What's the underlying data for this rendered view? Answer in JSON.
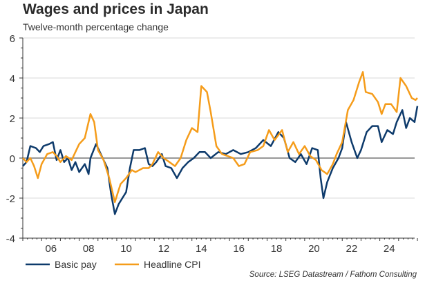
{
  "chart_data": {
    "type": "line",
    "title": "Wages and prices in Japan",
    "subtitle": "Twelve-month percentage change",
    "xlabel": "",
    "ylabel": "",
    "source": "Source: LSEG Datastream / Fathom Consulting",
    "xlim": [
      2005,
      2026
    ],
    "ylim": [
      -4,
      6
    ],
    "yticks": [
      -4,
      -2,
      0,
      2,
      4,
      6
    ],
    "ytick_labels": [
      "-4",
      "-2",
      "0",
      "2",
      "4",
      "6"
    ],
    "xtick_labels": [
      {
        "year": 2006,
        "label": "06"
      },
      {
        "year": 2008,
        "label": "08"
      },
      {
        "year": 2010,
        "label": "10"
      },
      {
        "year": 2012,
        "label": "12"
      },
      {
        "year": 2014,
        "label": "14"
      },
      {
        "year": 2016,
        "label": "16"
      },
      {
        "year": 2018,
        "label": "18"
      },
      {
        "year": 2020,
        "label": "20"
      },
      {
        "year": 2022,
        "label": "22"
      },
      {
        "year": 2024,
        "label": "24"
      }
    ],
    "grid": true,
    "legend": "bottom-left",
    "series": [
      {
        "name": "Basic pay",
        "color": "#0d3a6b",
        "x": [
          2005.0,
          2005.2,
          2005.4,
          2005.7,
          2005.9,
          2006.1,
          2006.4,
          2006.6,
          2006.8,
          2007.0,
          2007.2,
          2007.4,
          2007.6,
          2007.8,
          2008.0,
          2008.3,
          2008.5,
          2008.6,
          2008.9,
          2009.1,
          2009.3,
          2009.5,
          2009.7,
          2009.9,
          2010.1,
          2010.3,
          2010.5,
          2010.7,
          2010.9,
          2011.2,
          2011.5,
          2011.7,
          2011.9,
          2012.1,
          2012.4,
          2012.6,
          2012.9,
          2013.2,
          2013.5,
          2013.8,
          2014.1,
          2014.4,
          2014.7,
          2015.0,
          2015.4,
          2015.8,
          2016.2,
          2016.6,
          2017.0,
          2017.4,
          2017.8,
          2018.2,
          2018.6,
          2018.9,
          2019.2,
          2019.5,
          2019.8,
          2020.1,
          2020.4,
          2020.7,
          2020.85,
          2021.0,
          2021.2,
          2021.5,
          2021.8,
          2022.0,
          2022.2,
          2022.5,
          2022.8,
          2023.0,
          2023.3,
          2023.6,
          2023.9,
          2024.1,
          2024.4,
          2024.7,
          2024.9,
          2025.2,
          2025.4,
          2025.6,
          2025.85,
          2026.0
        ],
        "values": [
          -0.4,
          -0.2,
          0.6,
          0.5,
          0.3,
          0.6,
          0.7,
          0.8,
          -0.1,
          0.4,
          -0.2,
          0.0,
          -0.6,
          -0.2,
          -0.7,
          -0.3,
          -0.8,
          0.0,
          0.7,
          0.3,
          -0.1,
          -0.5,
          -1.8,
          -2.8,
          -2.3,
          -2.0,
          -1.7,
          -0.5,
          0.4,
          0.4,
          0.5,
          -0.3,
          -0.4,
          -0.2,
          0.2,
          -0.4,
          -0.5,
          -1.0,
          -0.5,
          -0.2,
          0.0,
          0.3,
          0.3,
          0.0,
          0.3,
          0.2,
          0.4,
          0.2,
          0.3,
          0.5,
          0.9,
          0.6,
          1.3,
          1.0,
          0.0,
          -0.2,
          0.2,
          -0.3,
          0.5,
          0.4,
          -1.0,
          -2.0,
          -1.2,
          -0.5,
          0.0,
          0.5,
          1.8,
          0.8,
          0.0,
          0.4,
          1.3,
          1.6,
          1.6,
          0.8,
          1.4,
          1.2,
          1.8,
          2.4,
          1.5,
          2.0,
          1.8,
          2.6
        ]
      },
      {
        "name": "Headline CPI",
        "color": "#f59c1a",
        "x": [
          2005.0,
          2005.2,
          2005.4,
          2005.6,
          2005.8,
          2006.0,
          2006.3,
          2006.6,
          2006.8,
          2007.0,
          2007.3,
          2007.6,
          2007.8,
          2008.0,
          2008.3,
          2008.6,
          2008.8,
          2009.0,
          2009.3,
          2009.6,
          2009.9,
          2010.2,
          2010.5,
          2010.8,
          2011.0,
          2011.4,
          2011.7,
          2011.9,
          2012.2,
          2012.5,
          2012.8,
          2013.1,
          2013.4,
          2013.7,
          2014.0,
          2014.3,
          2014.5,
          2014.8,
          2015.0,
          2015.3,
          2015.6,
          2015.9,
          2016.2,
          2016.5,
          2016.8,
          2017.1,
          2017.5,
          2017.8,
          2018.1,
          2018.4,
          2018.8,
          2019.1,
          2019.4,
          2019.7,
          2020.0,
          2020.3,
          2020.6,
          2020.9,
          2021.2,
          2021.5,
          2021.7,
          2022.0,
          2022.3,
          2022.6,
          2022.9,
          2023.1,
          2023.25,
          2023.6,
          2023.9,
          2024.1,
          2024.3,
          2024.6,
          2024.9,
          2025.1,
          2025.4,
          2025.7,
          2025.9,
          2026.0
        ],
        "values": [
          0.0,
          -0.2,
          0.0,
          -0.4,
          -1.0,
          -0.3,
          0.2,
          0.3,
          0.1,
          -0.2,
          0.1,
          -0.1,
          0.3,
          0.7,
          1.0,
          2.2,
          1.8,
          0.4,
          -0.1,
          -1.0,
          -2.2,
          -1.3,
          -1.0,
          -0.6,
          -0.7,
          -0.5,
          -0.5,
          -0.3,
          0.3,
          0.0,
          -0.2,
          -0.4,
          0.0,
          0.9,
          1.5,
          1.3,
          3.6,
          3.3,
          2.3,
          0.6,
          0.2,
          0.1,
          0.0,
          -0.4,
          -0.3,
          0.3,
          0.4,
          0.6,
          1.4,
          0.9,
          1.4,
          0.3,
          0.8,
          0.2,
          0.6,
          0.1,
          -0.1,
          -0.6,
          -0.8,
          -0.3,
          0.2,
          0.8,
          2.4,
          2.9,
          3.8,
          4.3,
          3.3,
          3.2,
          2.8,
          2.2,
          2.7,
          2.7,
          2.3,
          4.0,
          3.6,
          3.0,
          2.9,
          3.0
        ]
      }
    ]
  }
}
